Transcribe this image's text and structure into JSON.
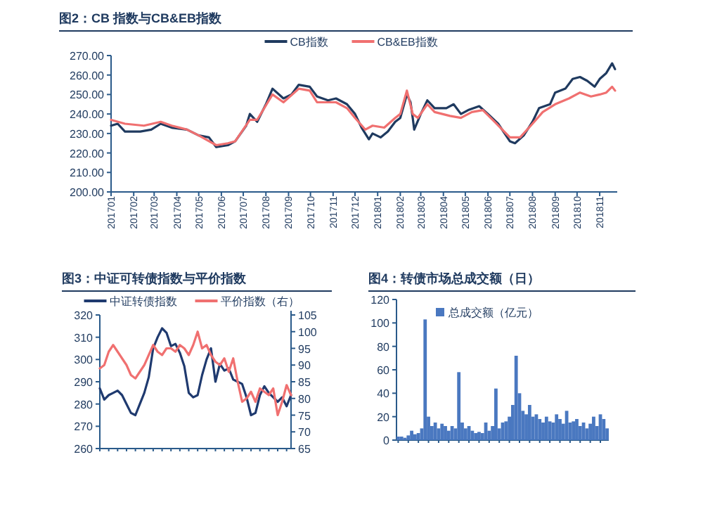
{
  "chart_data": [
    {
      "type": "line",
      "title": "图2：CB 指数与CB&EB指数",
      "legend": "top",
      "xlim": [
        "2017-01-01",
        "2018-11-25"
      ],
      "xticks": [
        {
          "value": "2017-01-01",
          "label": "201701"
        },
        {
          "value": "2017-02-01",
          "label": "201702"
        },
        {
          "value": "2017-03-01",
          "label": "201703"
        },
        {
          "value": "2017-04-01",
          "label": "201704"
        },
        {
          "value": "2017-05-01",
          "label": "201705"
        },
        {
          "value": "2017-06-01",
          "label": "201706"
        },
        {
          "value": "2017-07-01",
          "label": "201707"
        },
        {
          "value": "2017-08-01",
          "label": "201708"
        },
        {
          "value": "2017-09-01",
          "label": "201709"
        },
        {
          "value": "2017-10-01",
          "label": "201710"
        },
        {
          "value": "2017-11-01",
          "label": "201711"
        },
        {
          "value": "2017-12-01",
          "label": "201712"
        },
        {
          "value": "2018-01-01",
          "label": "201801"
        },
        {
          "value": "2018-02-01",
          "label": "201802"
        },
        {
          "value": "2018-03-01",
          "label": "201803"
        },
        {
          "value": "2018-04-01",
          "label": "201804"
        },
        {
          "value": "2018-05-01",
          "label": "201805"
        },
        {
          "value": "2018-06-01",
          "label": "201806"
        },
        {
          "value": "2018-07-01",
          "label": "201807"
        },
        {
          "value": "2018-08-01",
          "label": "201808"
        },
        {
          "value": "2018-09-01",
          "label": "201809"
        },
        {
          "value": "2018-10-01",
          "label": "201810"
        },
        {
          "value": "2018-11-01",
          "label": "201811"
        }
      ],
      "ylim": [
        200,
        270
      ],
      "yticks": [
        {
          "value": 200,
          "label": "200.00"
        },
        {
          "value": 210,
          "label": "210.00"
        },
        {
          "value": 220,
          "label": "220.00"
        },
        {
          "value": 230,
          "label": "230.00"
        },
        {
          "value": 240,
          "label": "240.00"
        },
        {
          "value": 250,
          "label": "250.00"
        },
        {
          "value": 260,
          "label": "260.00"
        },
        {
          "value": 270,
          "label": "270.00"
        }
      ],
      "series": [
        {
          "name": "CB指数",
          "color": "#1f3a5f",
          "x": [
            "2017-01-01",
            "2017-01-10",
            "2017-01-20",
            "2017-02-10",
            "2017-02-25",
            "2017-03-10",
            "2017-03-25",
            "2017-04-15",
            "2017-05-01",
            "2017-05-15",
            "2017-05-25",
            "2017-06-10",
            "2017-06-20",
            "2017-07-05",
            "2017-07-10",
            "2017-07-20",
            "2017-08-01",
            "2017-08-10",
            "2017-08-25",
            "2017-09-05",
            "2017-09-15",
            "2017-09-30",
            "2017-10-10",
            "2017-10-25",
            "2017-11-05",
            "2017-11-20",
            "2017-12-01",
            "2017-12-10",
            "2017-12-20",
            "2017-12-25",
            "2018-01-05",
            "2018-01-15",
            "2018-01-25",
            "2018-02-01",
            "2018-02-10",
            "2018-02-15",
            "2018-02-18",
            "2018-02-20",
            "2018-03-01",
            "2018-03-10",
            "2018-03-20",
            "2018-04-05",
            "2018-04-15",
            "2018-04-25",
            "2018-05-05",
            "2018-05-20",
            "2018-06-01",
            "2018-06-15",
            "2018-07-01",
            "2018-07-08",
            "2018-07-20",
            "2018-08-01",
            "2018-08-10",
            "2018-08-25",
            "2018-09-01",
            "2018-09-15",
            "2018-09-25",
            "2018-10-05",
            "2018-10-15",
            "2018-10-25",
            "2018-11-01",
            "2018-11-10",
            "2018-11-18",
            "2018-11-22"
          ],
          "values": [
            234,
            235,
            231,
            231,
            232,
            235,
            233,
            232,
            229,
            228,
            223,
            224,
            226,
            234,
            240,
            236,
            245,
            253,
            248,
            250,
            255,
            254,
            249,
            247,
            248,
            245,
            240,
            233,
            227,
            230,
            228,
            231,
            236,
            238,
            250,
            246,
            238,
            232,
            240,
            247,
            243,
            243,
            245,
            240,
            242,
            244,
            240,
            235,
            226,
            225,
            229,
            236,
            243,
            245,
            251,
            253,
            258,
            259,
            257,
            254,
            258,
            261,
            266,
            263
          ]
        },
        {
          "name": "CB&EB指数",
          "color": "#f07070",
          "x": [
            "2017-01-01",
            "2017-01-20",
            "2017-02-15",
            "2017-03-10",
            "2017-03-25",
            "2017-04-15",
            "2017-05-01",
            "2017-05-25",
            "2017-06-10",
            "2017-06-20",
            "2017-07-10",
            "2017-07-20",
            "2017-08-10",
            "2017-08-25",
            "2017-09-15",
            "2017-09-30",
            "2017-10-10",
            "2017-10-25",
            "2017-11-05",
            "2017-11-20",
            "2017-12-01",
            "2017-12-15",
            "2017-12-25",
            "2018-01-10",
            "2018-01-25",
            "2018-02-01",
            "2018-02-10",
            "2018-02-18",
            "2018-02-25",
            "2018-03-10",
            "2018-03-20",
            "2018-04-10",
            "2018-04-25",
            "2018-05-10",
            "2018-05-25",
            "2018-06-10",
            "2018-07-01",
            "2018-07-15",
            "2018-08-01",
            "2018-08-15",
            "2018-09-01",
            "2018-09-20",
            "2018-10-05",
            "2018-10-20",
            "2018-11-01",
            "2018-11-10",
            "2018-11-18",
            "2018-11-22"
          ],
          "values": [
            237,
            235,
            234,
            236,
            234,
            232,
            229,
            224,
            225,
            226,
            237,
            237,
            250,
            246,
            253,
            252,
            246,
            246,
            246,
            243,
            238,
            232,
            234,
            233,
            238,
            240,
            252,
            240,
            238,
            245,
            241,
            239,
            238,
            241,
            242,
            236,
            228,
            228,
            235,
            241,
            245,
            248,
            251,
            249,
            250,
            251,
            254,
            252
          ]
        }
      ]
    },
    {
      "type": "line",
      "title": "图3：中证可转债指数与平价指数",
      "legend": "top",
      "categories": [
        null,
        null,
        null,
        null,
        null,
        null,
        null,
        null,
        null,
        null,
        null,
        null,
        null,
        null,
        null,
        null,
        null,
        null,
        null,
        null,
        null,
        null,
        null,
        null,
        null,
        null,
        null,
        null,
        null,
        null,
        null,
        null,
        null,
        null,
        null,
        null,
        null,
        null,
        null,
        null,
        null,
        null,
        null,
        null
      ],
      "ylim": [
        260,
        320
      ],
      "yticks": [
        260,
        270,
        280,
        290,
        300,
        310,
        320
      ],
      "y2lim": [
        65,
        105
      ],
      "y2ticks": [
        65,
        70,
        75,
        80,
        85,
        90,
        95,
        100,
        105
      ],
      "series": [
        {
          "name": "中证转债指数",
          "color": "#1f3a6f",
          "values": [
            287,
            282,
            284,
            285,
            286,
            284,
            280,
            276,
            275,
            280,
            285,
            292,
            305,
            310,
            314,
            312,
            306,
            307,
            303,
            297,
            285,
            283,
            284,
            293,
            300,
            305,
            290,
            298,
            295,
            296,
            291,
            290,
            289,
            283,
            275,
            276,
            284,
            288,
            285,
            283,
            281,
            283,
            279,
            284
          ]
        },
        {
          "name": "平价指数（右）",
          "color": "#f07070",
          "axis": "y2",
          "values": [
            89,
            90,
            94,
            96,
            94,
            92,
            90,
            87,
            86,
            88,
            90,
            93,
            96,
            94,
            93,
            95,
            95,
            94,
            96,
            95,
            93,
            96,
            100,
            95,
            96,
            93,
            91,
            90,
            92,
            88,
            92,
            85,
            79,
            80,
            82,
            79,
            83,
            82,
            81,
            83,
            75,
            79,
            84,
            81
          ]
        }
      ]
    },
    {
      "type": "bar",
      "title": "图4：转债市场总成交额（日）",
      "legend": "top left",
      "categories": [
        null,
        null,
        null,
        null,
        null,
        null,
        null,
        null,
        null,
        null,
        null,
        null,
        null,
        null,
        null,
        null,
        null,
        null,
        null,
        null,
        null,
        null,
        null,
        null,
        null,
        null,
        null,
        null,
        null,
        null,
        null,
        null,
        null,
        null,
        null,
        null,
        null,
        null,
        null,
        null,
        null,
        null,
        null,
        null,
        null,
        null,
        null,
        null,
        null,
        null,
        null,
        null,
        null,
        null,
        null,
        null,
        null,
        null,
        null,
        null,
        null,
        null,
        null
      ],
      "ylim": [
        0,
        120
      ],
      "yticks": [
        0,
        20,
        40,
        60,
        80,
        100,
        120
      ],
      "series": [
        {
          "name": "总成交额（亿元）",
          "color": "#4a78c0",
          "values": [
            3,
            3,
            2,
            4,
            8,
            5,
            6,
            10,
            103,
            20,
            12,
            15,
            10,
            14,
            12,
            8,
            12,
            10,
            58,
            15,
            10,
            12,
            8,
            6,
            7,
            6,
            15,
            8,
            12,
            44,
            10,
            15,
            16,
            20,
            30,
            72,
            40,
            25,
            22,
            30,
            20,
            22,
            18,
            15,
            20,
            16,
            15,
            22,
            18,
            14,
            25,
            15,
            16,
            18,
            12,
            15,
            10,
            14,
            20,
            12,
            22,
            18,
            10
          ]
        }
      ]
    }
  ]
}
